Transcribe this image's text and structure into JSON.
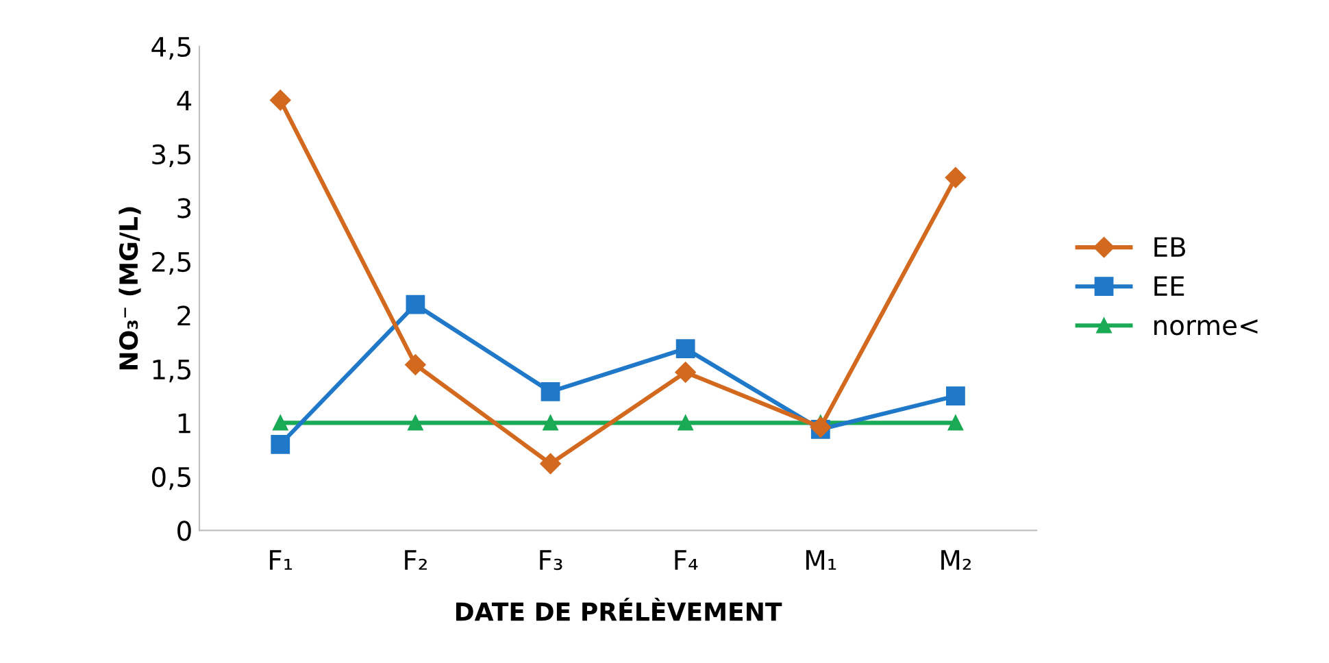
{
  "chart_data": {
    "type": "line",
    "xlabel": "DATE DE PRÉLÈVEMENT",
    "ylabel": "NO₃⁻ (MG/L)",
    "categories": [
      "F₁",
      "F₂",
      "F₃",
      "F₄",
      "M₁",
      "M₂"
    ],
    "series": [
      {
        "name": "EB",
        "color": "#d2691e",
        "marker": "diamond",
        "values": [
          4.0,
          1.54,
          0.62,
          1.47,
          0.96,
          3.28
        ]
      },
      {
        "name": "EE",
        "color": "#1f78c8",
        "marker": "square",
        "values": [
          0.8,
          2.1,
          1.29,
          1.69,
          0.94,
          1.25
        ]
      },
      {
        "name": "norme<",
        "color": "#1aaa55",
        "marker": "triangle",
        "values": [
          1,
          1,
          1,
          1,
          1,
          1
        ]
      }
    ],
    "ylim": [
      0,
      4.5
    ],
    "yticks": [
      0,
      {
        "value": 0.5,
        "label": "0,5"
      },
      1,
      {
        "value": 1.5,
        "label": "1,5"
      },
      2,
      {
        "value": 2.5,
        "label": "2,5"
      },
      3,
      {
        "value": 3.5,
        "label": "3,5"
      },
      4,
      {
        "value": 4.5,
        "label": "4,5"
      }
    ],
    "grid": false,
    "legend": "right",
    "line_style": "solid"
  }
}
